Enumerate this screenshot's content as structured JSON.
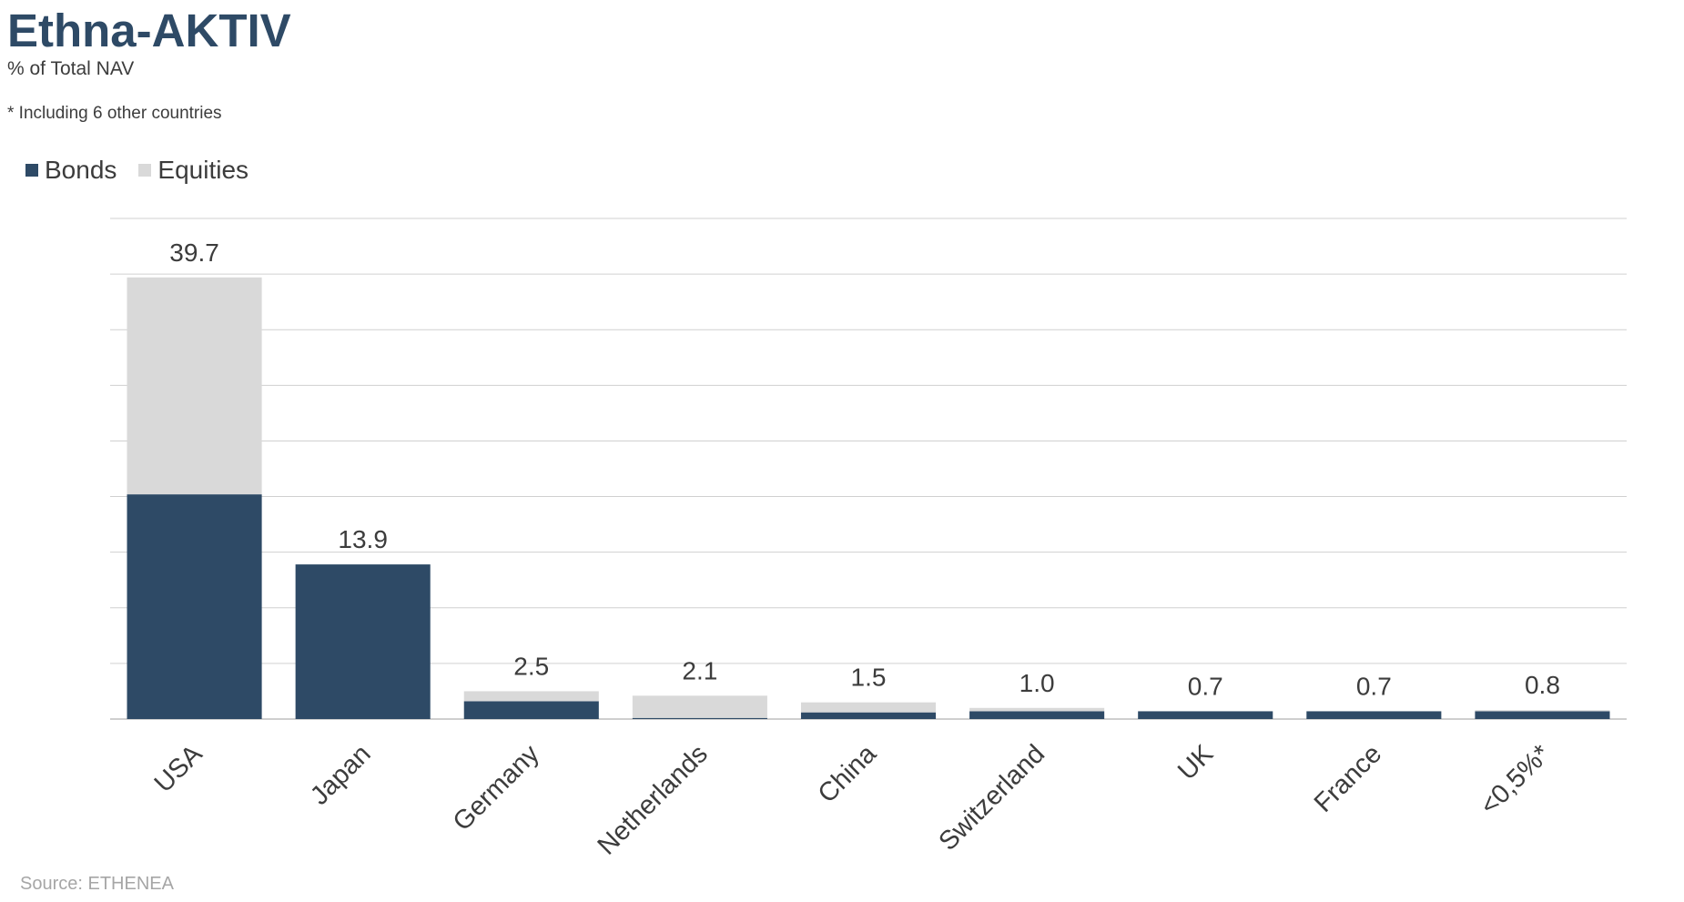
{
  "header": {
    "title": "Ethna-AKTIV",
    "subtitle": "% of Total NAV",
    "footnote": "* Including 6 other countries"
  },
  "footer": {
    "source": "Source: ETHENEA"
  },
  "colors": {
    "bonds": "#2e4a66",
    "equities": "#d9d9d9",
    "grid": "#d0d0d0",
    "text": "#3c3c3c"
  },
  "chart_data": {
    "type": "bar",
    "stacked": true,
    "categories": [
      "USA",
      "Japan",
      "Germany",
      "Netherlands",
      "China",
      "Switzerland",
      "UK",
      "France",
      "<0,5%*"
    ],
    "series": [
      {
        "name": "Bonds",
        "values": [
          20.2,
          13.9,
          1.6,
          0.1,
          0.6,
          0.7,
          0.7,
          0.7,
          0.7
        ]
      },
      {
        "name": "Equities",
        "values": [
          19.5,
          0.0,
          0.9,
          2.0,
          0.9,
          0.3,
          0.0,
          0.0,
          0.1
        ]
      }
    ],
    "totals": [
      "39.7",
      "13.9",
      "2.5",
      "2.1",
      "1.5",
      "1.0",
      "0.7",
      "0.7",
      "0.8"
    ],
    "ylim": [
      0,
      45
    ],
    "grid": true,
    "legend_position": "top-left",
    "title": "Ethna-AKTIV",
    "xlabel": "",
    "ylabel": ""
  }
}
